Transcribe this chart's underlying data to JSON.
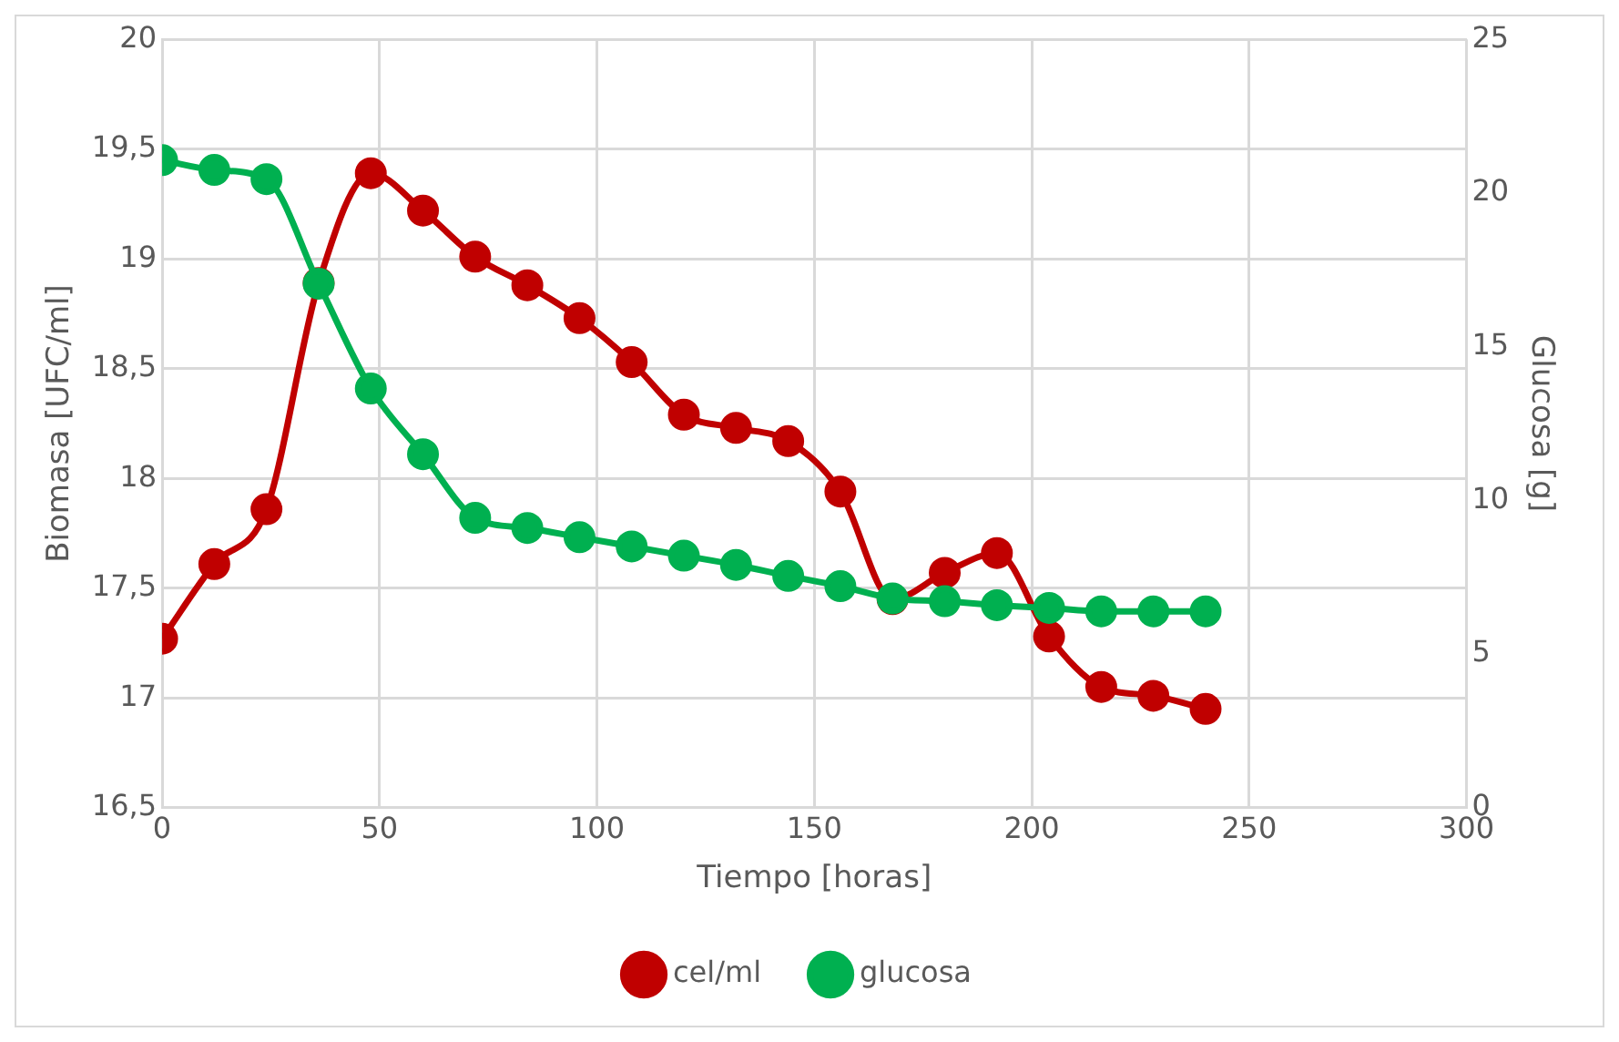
{
  "chart_data": {
    "type": "line",
    "xlabel": "Tiempo [horas]",
    "ylabel": "Biomasa [UFC/ml]",
    "y2label": "Glucosa [g]",
    "x": [
      0,
      12,
      24,
      36,
      48,
      60,
      72,
      84,
      96,
      108,
      120,
      132,
      144,
      156,
      168,
      180,
      192,
      204,
      216,
      228,
      240
    ],
    "series": [
      {
        "name": "cel/ml",
        "color": "#c00000",
        "values": [
          17.27,
          17.61,
          17.86,
          18.89,
          19.39,
          19.22,
          19.01,
          18.88,
          18.73,
          18.53,
          18.29,
          18.23,
          18.17,
          17.94,
          17.45,
          17.57,
          17.66,
          17.28,
          17.05,
          17.01,
          16.95
        ]
      },
      {
        "name": "glucosa",
        "color": "#00b050",
        "axis": "y2",
        "values": [
          21.07,
          20.75,
          20.45,
          17.05,
          13.64,
          11.5,
          9.43,
          9.1,
          8.8,
          8.5,
          8.2,
          7.9,
          7.54,
          7.21,
          6.81,
          6.72,
          6.59,
          6.5,
          6.39,
          6.39,
          6.39
        ]
      }
    ],
    "xlim": [
      0,
      300
    ],
    "xticks": [
      0,
      50,
      100,
      150,
      200,
      250,
      300
    ],
    "ylim": [
      16.5,
      20
    ],
    "yticks": [
      {
        "value": 16.5,
        "label": "16,5"
      },
      17,
      {
        "value": 17.5,
        "label": "17,5"
      },
      18,
      {
        "value": 18.5,
        "label": "18,5"
      },
      19,
      {
        "value": 19.5,
        "label": "19,5"
      },
      20
    ],
    "y2lim": [
      0,
      25
    ],
    "y2ticks": [
      0,
      5,
      10,
      15,
      20,
      25
    ],
    "grid": true,
    "legend": "bottom",
    "marker": "circle",
    "line_style": "solid"
  }
}
